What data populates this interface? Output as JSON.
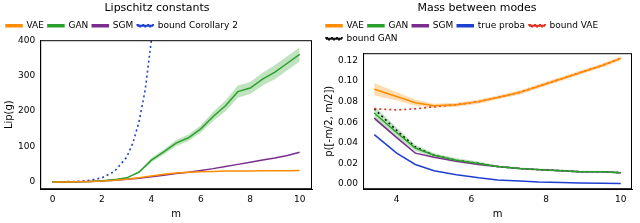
{
  "chart_data": [
    {
      "type": "line",
      "title": "Lipschitz constants",
      "x_label": "m",
      "y_label": "Lip(g)",
      "xlim": [
        -0.5,
        10.5
      ],
      "xticks": [
        0,
        2,
        4,
        6,
        8,
        10
      ],
      "ylim": [
        -20,
        400
      ],
      "yticks": [
        0,
        100,
        200,
        300,
        400
      ],
      "grid": false,
      "legend": "upper left",
      "series": [
        {
          "name": "VAE",
          "color": "#ff8c00",
          "line_style": "solid",
          "x": [
            0,
            0.5,
            1,
            1.5,
            2,
            2.5,
            3,
            3.5,
            4,
            4.5,
            5,
            5.5,
            6,
            6.5,
            7,
            7.5,
            8,
            8.5,
            9,
            9.5,
            10
          ],
          "values": [
            0,
            0.5,
            1,
            2,
            3,
            5,
            8,
            12,
            17,
            22,
            26,
            28,
            29,
            30,
            31,
            31,
            31,
            32,
            32,
            32,
            33
          ]
        },
        {
          "name": "GAN",
          "color": "#2ca02c",
          "line_style": "solid",
          "x": [
            0,
            0.5,
            1,
            1.5,
            2,
            2.5,
            3,
            3.5,
            4,
            4.5,
            5,
            5.5,
            6,
            6.5,
            7,
            7.5,
            8,
            8.5,
            9,
            9.5,
            10
          ],
          "values": [
            0,
            0.5,
            1,
            2,
            4,
            7,
            12,
            28,
            62,
            85,
            110,
            125,
            150,
            185,
            215,
            255,
            265,
            290,
            310,
            335,
            360
          ],
          "lower": [
            0,
            0.5,
            1,
            2,
            4,
            6,
            11,
            25,
            56,
            78,
            101,
            116,
            140,
            172,
            200,
            238,
            248,
            272,
            290,
            315,
            340
          ],
          "upper": [
            0,
            0.5,
            1,
            2,
            4,
            8,
            13,
            31,
            68,
            92,
            119,
            134,
            160,
            198,
            230,
            272,
            282,
            308,
            330,
            355,
            380
          ]
        },
        {
          "name": "SGM",
          "color": "#7b2d8e",
          "line_style": "solid",
          "x": [
            0,
            0.5,
            1,
            1.5,
            2,
            2.5,
            3,
            3.5,
            4,
            4.5,
            5,
            5.5,
            6,
            6.5,
            7,
            7.5,
            8,
            8.5,
            9,
            9.5,
            10
          ],
          "values": [
            0,
            0.5,
            1,
            2,
            3,
            5,
            8,
            11,
            15,
            19,
            24,
            28,
            33,
            38,
            44,
            50,
            56,
            62,
            68,
            75,
            84
          ]
        },
        {
          "name": "bound Corollary 2",
          "color": "#1f3fcf",
          "line_style": "dotted",
          "x": [
            0,
            0.5,
            1,
            1.5,
            2,
            2.5,
            3,
            3.25,
            3.5,
            3.75,
            4
          ],
          "values": [
            0,
            1,
            2,
            5,
            12,
            30,
            70,
            110,
            170,
            260,
            400
          ]
        }
      ]
    },
    {
      "type": "line",
      "title": "Mass between modes",
      "x_label": "m",
      "y_label": "p([-m/2, m/2])",
      "xlim": [
        3.1,
        10.3
      ],
      "xticks": [
        4,
        6,
        8,
        10
      ],
      "ylim": [
        -0.005,
        0.127
      ],
      "yticks": [
        {
          "value": 0,
          "label": "0.00"
        },
        {
          "value": 0.02,
          "label": "0.02"
        },
        {
          "value": 0.04,
          "label": "0.04"
        },
        {
          "value": 0.06,
          "label": "0.06"
        },
        {
          "value": 0.08,
          "label": "0.08"
        },
        {
          "value": 0.1,
          "label": "0.10"
        },
        {
          "value": 0.12,
          "label": "0.12"
        }
      ],
      "grid": false,
      "legend": "upper left",
      "series": [
        {
          "name": "VAE",
          "color": "#ff8c00",
          "line_style": "solid",
          "x": [
            3.4,
            4.0,
            4.5,
            5.0,
            5.6,
            6.2,
            6.7,
            7.3,
            7.8,
            8.4,
            8.9,
            9.5,
            10
          ],
          "values": [
            0.092,
            0.085,
            0.079,
            0.076,
            0.077,
            0.08,
            0.084,
            0.089,
            0.095,
            0.102,
            0.108,
            0.115,
            0.122
          ],
          "lower": [
            0.086,
            0.081,
            0.076,
            0.074,
            0.075,
            0.078,
            0.082,
            0.087,
            0.093,
            0.1,
            0.106,
            0.113,
            0.12
          ],
          "upper": [
            0.098,
            0.089,
            0.082,
            0.078,
            0.079,
            0.082,
            0.086,
            0.091,
            0.097,
            0.104,
            0.11,
            0.117,
            0.124
          ]
        },
        {
          "name": "GAN",
          "color": "#2ca02c",
          "line_style": "solid",
          "x": [
            3.4,
            4.0,
            4.5,
            5.0,
            5.6,
            6.2,
            6.7,
            7.3,
            7.8,
            8.4,
            8.9,
            9.5,
            10
          ],
          "values": [
            0.069,
            0.05,
            0.035,
            0.028,
            0.023,
            0.02,
            0.017,
            0.015,
            0.014,
            0.013,
            0.012,
            0.012,
            0.011
          ],
          "lower": [
            0.062,
            0.045,
            0.032,
            0.026,
            0.021,
            0.018,
            0.016,
            0.014,
            0.013,
            0.012,
            0.011,
            0.011,
            0.01
          ],
          "upper": [
            0.076,
            0.055,
            0.038,
            0.03,
            0.025,
            0.022,
            0.018,
            0.016,
            0.015,
            0.014,
            0.013,
            0.013,
            0.012
          ]
        },
        {
          "name": "SGM",
          "color": "#7b2d8e",
          "line_style": "solid",
          "x": [
            3.4,
            4.0,
            4.5,
            5.0,
            5.6,
            6.2,
            6.7,
            7.3,
            7.8,
            8.4,
            8.9,
            9.5,
            10
          ],
          "values": [
            0.064,
            0.045,
            0.03,
            0.026,
            0.022,
            0.019,
            0.017,
            0.015,
            0.014,
            0.013,
            0.012,
            0.012,
            0.011
          ]
        },
        {
          "name": "true proba",
          "color": "#1f3fcf",
          "line_style": "solid",
          "x": [
            3.4,
            4.0,
            4.5,
            5.0,
            5.6,
            6.2,
            6.7,
            7.3,
            7.8,
            8.4,
            8.9,
            9.5,
            10
          ],
          "values": [
            0.048,
            0.03,
            0.019,
            0.013,
            0.009,
            0.006,
            0.004,
            0.003,
            0.002,
            0.0015,
            0.001,
            0.0007,
            0.0005
          ]
        },
        {
          "name": "bound VAE",
          "color": "#e0301e",
          "line_style": "dotted",
          "x": [
            3.4,
            4.0,
            4.5,
            5.0,
            5.6,
            6.2,
            6.7,
            7.3,
            7.8,
            8.4,
            8.9,
            9.5,
            10
          ],
          "values": [
            0.073,
            0.072,
            0.073,
            0.075,
            0.077,
            0.08,
            0.084,
            0.089,
            0.095,
            0.102,
            0.108,
            0.115,
            0.122
          ]
        },
        {
          "name": "bound GAN",
          "color": "#111111",
          "line_style": "dotted",
          "x": [
            3.4,
            4.0,
            4.5,
            5.0,
            5.6,
            6.2,
            6.7,
            7.3,
            7.8,
            8.4,
            8.9,
            9.5,
            10
          ],
          "values": [
            0.073,
            0.052,
            0.036,
            0.028,
            0.023,
            0.02,
            0.017,
            0.015,
            0.014,
            0.013,
            0.012,
            0.012,
            0.011
          ]
        }
      ]
    }
  ]
}
